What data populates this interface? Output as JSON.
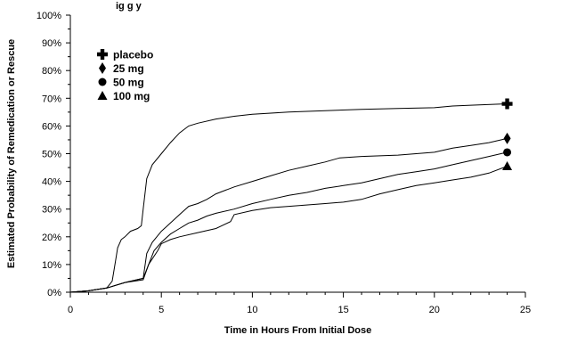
{
  "chart_data": {
    "type": "line",
    "title_partial": "ig                    g                              y",
    "xlabel": "Time in Hours From Initial Dose",
    "ylabel": "Estimated Probability of Remedication or Rescue",
    "xlim": [
      0,
      25
    ],
    "ylim": [
      0,
      100
    ],
    "x_ticks": [
      "0",
      "5",
      "10",
      "15",
      "20",
      "25"
    ],
    "y_ticks": [
      "0%",
      "10%",
      "20%",
      "30%",
      "40%",
      "50%",
      "60%",
      "70%",
      "80%",
      "90%",
      "100%"
    ],
    "grid": false,
    "legend_position": "top-left",
    "series": [
      {
        "name": "placebo",
        "marker": "plus",
        "end_value": 68,
        "points": [
          [
            0,
            0
          ],
          [
            1,
            0.5
          ],
          [
            2,
            1.5
          ],
          [
            2.3,
            4
          ],
          [
            2.5,
            12
          ],
          [
            2.6,
            16
          ],
          [
            2.8,
            19
          ],
          [
            3.0,
            20
          ],
          [
            3.3,
            22
          ],
          [
            3.7,
            23
          ],
          [
            3.9,
            24
          ],
          [
            4.0,
            30
          ],
          [
            4.2,
            41
          ],
          [
            4.5,
            46
          ],
          [
            5.0,
            50
          ],
          [
            5.5,
            54
          ],
          [
            6.0,
            57.5
          ],
          [
            6.5,
            60
          ],
          [
            7,
            61
          ],
          [
            8,
            62.5
          ],
          [
            9,
            63.5
          ],
          [
            10,
            64.2
          ],
          [
            12,
            65
          ],
          [
            14,
            65.5
          ],
          [
            16,
            66
          ],
          [
            18,
            66.3
          ],
          [
            20,
            66.6
          ],
          [
            21,
            67.2
          ],
          [
            22,
            67.5
          ],
          [
            24,
            68
          ]
        ]
      },
      {
        "name": "25 mg",
        "marker": "diamond",
        "end_value": 55.5,
        "points": [
          [
            0,
            0
          ],
          [
            1,
            0.5
          ],
          [
            2,
            1.5
          ],
          [
            3,
            3.5
          ],
          [
            4,
            5
          ],
          [
            4.2,
            14
          ],
          [
            4.5,
            18
          ],
          [
            5,
            22
          ],
          [
            5.5,
            25
          ],
          [
            6,
            28
          ],
          [
            6.5,
            31
          ],
          [
            7,
            32
          ],
          [
            7.5,
            33.5
          ],
          [
            8,
            35.5
          ],
          [
            9,
            38
          ],
          [
            10,
            40
          ],
          [
            11,
            42
          ],
          [
            12,
            44
          ],
          [
            13,
            45.5
          ],
          [
            14,
            47
          ],
          [
            14.8,
            48.5
          ],
          [
            16,
            49
          ],
          [
            18,
            49.5
          ],
          [
            20,
            50.5
          ],
          [
            21,
            52
          ],
          [
            22,
            53
          ],
          [
            23,
            54
          ],
          [
            24,
            55.5
          ]
        ]
      },
      {
        "name": "50 mg",
        "marker": "circle",
        "end_value": 50.5,
        "points": [
          [
            0,
            0
          ],
          [
            1,
            0.5
          ],
          [
            2,
            1.5
          ],
          [
            3,
            3.5
          ],
          [
            4,
            5
          ],
          [
            4.3,
            10
          ],
          [
            4.6,
            15
          ],
          [
            5,
            18
          ],
          [
            5.5,
            21
          ],
          [
            6,
            23
          ],
          [
            6.5,
            25
          ],
          [
            7,
            26
          ],
          [
            7.5,
            27.5
          ],
          [
            8,
            28.5
          ],
          [
            9,
            30
          ],
          [
            10,
            32
          ],
          [
            11,
            33.5
          ],
          [
            12,
            35
          ],
          [
            13,
            36
          ],
          [
            14,
            37.5
          ],
          [
            15,
            38.5
          ],
          [
            16,
            39.5
          ],
          [
            17,
            41
          ],
          [
            18,
            42.5
          ],
          [
            19,
            43.5
          ],
          [
            20,
            44.5
          ],
          [
            21,
            46
          ],
          [
            22,
            47.5
          ],
          [
            23,
            49
          ],
          [
            24,
            50.5
          ]
        ]
      },
      {
        "name": "100 mg",
        "marker": "triangle",
        "end_value": 45.5,
        "points": [
          [
            0,
            0
          ],
          [
            1,
            0.5
          ],
          [
            2,
            1.5
          ],
          [
            3,
            3.5
          ],
          [
            4,
            4.5
          ],
          [
            4.3,
            10
          ],
          [
            4.8,
            15
          ],
          [
            5,
            17.5
          ],
          [
            5.5,
            19
          ],
          [
            6,
            20
          ],
          [
            7,
            21.5
          ],
          [
            8,
            23
          ],
          [
            8.8,
            25.5
          ],
          [
            9,
            28
          ],
          [
            10,
            29.5
          ],
          [
            11,
            30.5
          ],
          [
            12,
            31
          ],
          [
            14,
            32
          ],
          [
            15,
            32.5
          ],
          [
            16,
            33.5
          ],
          [
            17,
            35.5
          ],
          [
            18,
            37
          ],
          [
            19,
            38.5
          ],
          [
            20,
            39.5
          ],
          [
            21,
            40.5
          ],
          [
            22,
            41.5
          ],
          [
            23,
            43
          ],
          [
            24,
            45.5
          ]
        ]
      }
    ]
  }
}
